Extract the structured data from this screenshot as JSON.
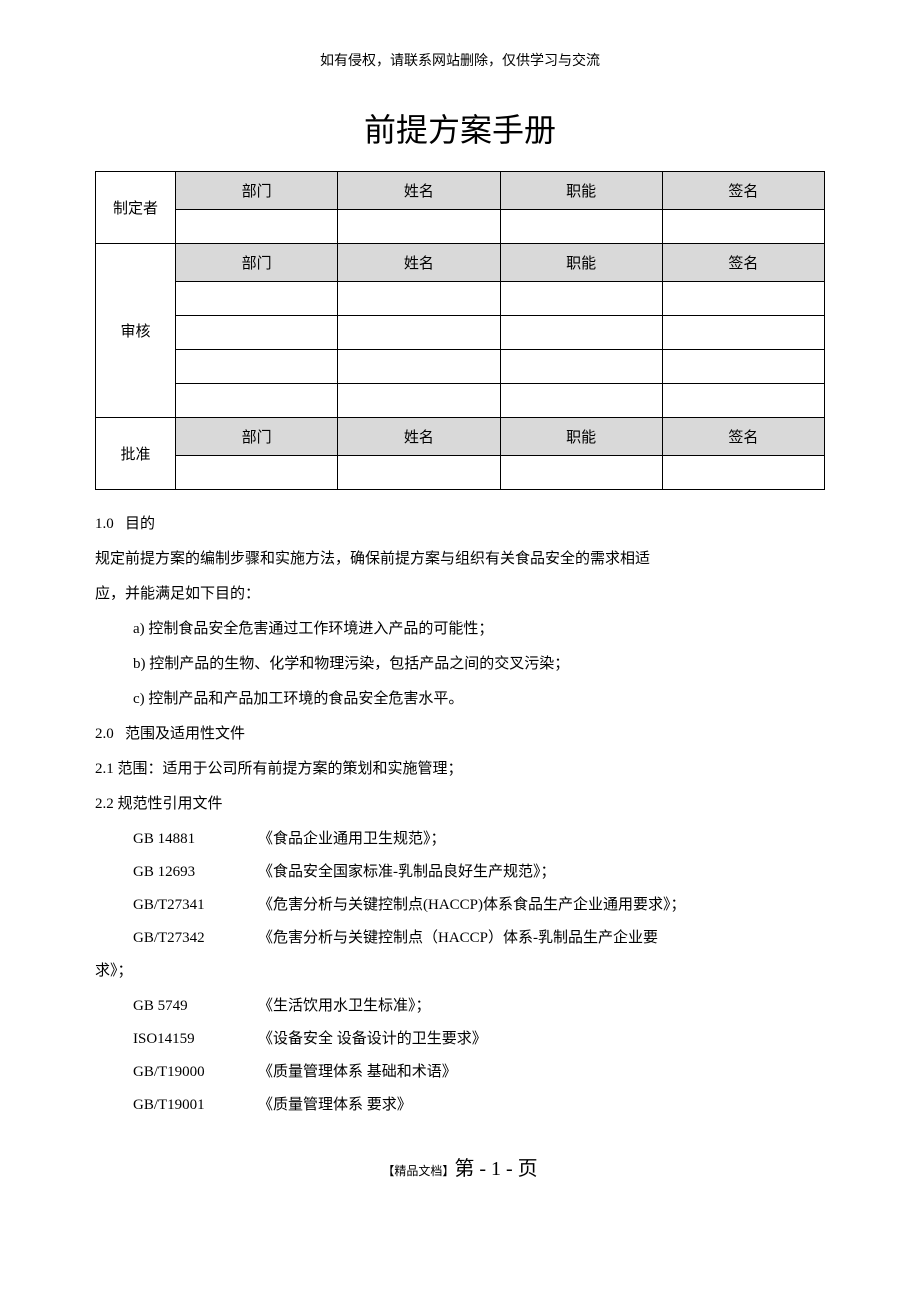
{
  "header_note": "如有侵权，请联系网站删除，仅供学习与交流",
  "main_title": "前提方案手册",
  "table": {
    "labels": {
      "creator": "制定者",
      "reviewer": "审核",
      "approver": "批准"
    },
    "headers": {
      "dept": "部门",
      "name": "姓名",
      "role": "职能",
      "sign": "签名"
    }
  },
  "sections": {
    "s1_num": "1.0",
    "s1_title": "目的",
    "s1_body1": "规定前提方案的编制步骤和实施方法，确保前提方案与组织有关食品安全的需求相适",
    "s1_body2": "应，并能满足如下目的：",
    "s1_a": "a)  控制食品安全危害通过工作环境进入产品的可能性；",
    "s1_b": "b) 控制产品的生物、化学和物理污染，包括产品之间的交叉污染；",
    "s1_c": "c) 控制产品和产品加工环境的食品安全危害水平。",
    "s2_num": "2.0",
    "s2_title": "范围及适用性文件",
    "s21": "2.1   范围：适用于公司所有前提方案的策划和实施管理；",
    "s22": "2.2   规范性引用文件",
    "refs": [
      {
        "code": "GB 14881",
        "title": "《食品企业通用卫生规范》；"
      },
      {
        "code": "GB 12693",
        "title": "《食品安全国家标准-乳制品良好生产规范》；"
      },
      {
        "code": "GB/T27341",
        "title": "《危害分析与关键控制点(HACCP)体系食品生产企业通用要求》；"
      },
      {
        "code": "GB/T27342",
        "title": " 《危害分析与关键控制点（HACCP）体系-乳制品生产企业要"
      }
    ],
    "ref_cont": "求》；",
    "refs2": [
      {
        "code": "GB 5749",
        "title": "《生活饮用水卫生标准》；"
      },
      {
        "code": "ISO14159",
        "title": "《设备安全 设备设计的卫生要求》"
      },
      {
        "code": "GB/T19000",
        "title": "《质量管理体系   基础和术语》"
      },
      {
        "code": "GB/T19001",
        "title": "《质量管理体系   要求》"
      }
    ]
  },
  "footer": {
    "tag": "【精品文档】",
    "page": "第 - 1 - 页"
  }
}
